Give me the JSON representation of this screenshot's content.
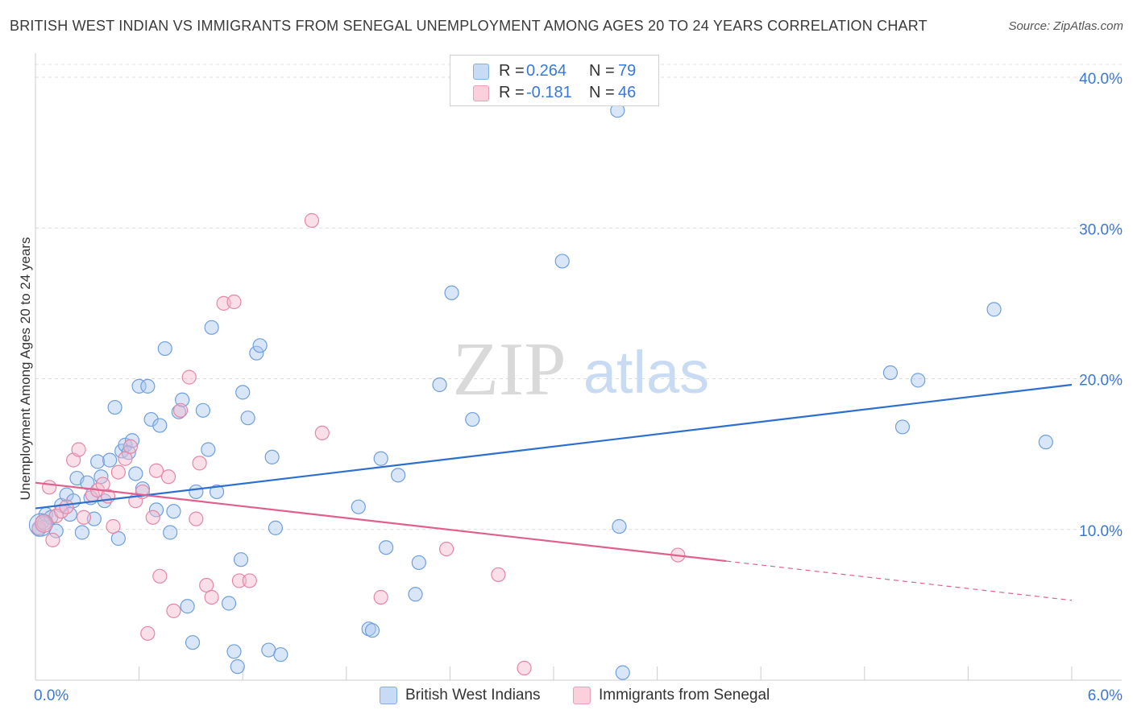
{
  "title": "BRITISH WEST INDIAN VS IMMIGRANTS FROM SENEGAL UNEMPLOYMENT AMONG AGES 20 TO 24 YEARS CORRELATION CHART",
  "source": "Source: ZipAtlas.com",
  "watermark": {
    "zip": "ZIP",
    "atlas": "atlas"
  },
  "legend": {
    "r_label": "R =",
    "n_label": "N =",
    "rows": [
      {
        "r": "0.264",
        "n": "79",
        "color": "#a9c8f0"
      },
      {
        "r": "-0.181",
        "n": "46",
        "color": "#f5b8cb"
      }
    ]
  },
  "bottom_legend": [
    {
      "label": "British West Indians",
      "color": "#a9c8f0"
    },
    {
      "label": "Immigrants from Senegal",
      "color": "#f5b8cb"
    }
  ],
  "chart_data": {
    "type": "scatter",
    "title": "BRITISH WEST INDIAN VS IMMIGRANTS FROM SENEGAL UNEMPLOYMENT AMONG AGES 20 TO 24 YEARS CORRELATION CHART",
    "xlabel": "",
    "ylabel": "Unemployment Among Ages 20 to 24 years",
    "xlim": [
      0,
      6
    ],
    "ylim": [
      0,
      40
    ],
    "x_tick_labels": [
      "0.0%",
      "6.0%"
    ],
    "y_ticks": [
      10,
      20,
      30,
      40
    ],
    "y_tick_labels": [
      "10.0%",
      "20.0%",
      "30.0%",
      "40.0%"
    ],
    "grid": "horizontal dashed",
    "legend_position": "top-center",
    "series": [
      {
        "name": "British West Indians",
        "color": "#a9c8f0",
        "stroke": "#6f9fdc",
        "trend": {
          "x0": 0.0,
          "y0": 11.4,
          "x1": 6.0,
          "y1": 19.6,
          "color": "#2c6fcf"
        },
        "points": [
          [
            0.02,
            10.0
          ],
          [
            0.04,
            10.5
          ],
          [
            0.06,
            11.0
          ],
          [
            0.09,
            10.8
          ],
          [
            0.12,
            9.9
          ],
          [
            0.15,
            11.6
          ],
          [
            0.18,
            12.3
          ],
          [
            0.2,
            11.0
          ],
          [
            0.22,
            11.9
          ],
          [
            0.24,
            13.4
          ],
          [
            0.27,
            9.8
          ],
          [
            0.3,
            13.1
          ],
          [
            0.32,
            12.1
          ],
          [
            0.34,
            10.7
          ],
          [
            0.36,
            14.5
          ],
          [
            0.38,
            13.5
          ],
          [
            0.4,
            11.9
          ],
          [
            0.43,
            14.6
          ],
          [
            0.46,
            18.1
          ],
          [
            0.48,
            9.4
          ],
          [
            0.5,
            15.2
          ],
          [
            0.52,
            15.6
          ],
          [
            0.54,
            15.1
          ],
          [
            0.56,
            15.9
          ],
          [
            0.58,
            13.7
          ],
          [
            0.6,
            19.5
          ],
          [
            0.62,
            12.7
          ],
          [
            0.65,
            19.5
          ],
          [
            0.67,
            17.3
          ],
          [
            0.7,
            11.3
          ],
          [
            0.72,
            16.9
          ],
          [
            0.75,
            22.0
          ],
          [
            0.78,
            9.8
          ],
          [
            0.8,
            11.2
          ],
          [
            0.83,
            17.8
          ],
          [
            0.85,
            18.6
          ],
          [
            0.88,
            4.9
          ],
          [
            0.91,
            2.5
          ],
          [
            0.93,
            12.5
          ],
          [
            0.97,
            17.9
          ],
          [
            1.0,
            15.3
          ],
          [
            1.02,
            23.4
          ],
          [
            1.05,
            12.5
          ],
          [
            1.12,
            5.1
          ],
          [
            1.15,
            1.9
          ],
          [
            1.17,
            0.9
          ],
          [
            1.19,
            8.0
          ],
          [
            1.2,
            19.1
          ],
          [
            1.23,
            17.4
          ],
          [
            1.28,
            21.7
          ],
          [
            1.3,
            22.2
          ],
          [
            1.35,
            2.0
          ],
          [
            1.37,
            14.8
          ],
          [
            1.39,
            10.1
          ],
          [
            1.42,
            1.7
          ],
          [
            1.87,
            11.5
          ],
          [
            1.93,
            3.4
          ],
          [
            1.95,
            3.3
          ],
          [
            2.0,
            14.7
          ],
          [
            2.03,
            8.8
          ],
          [
            2.1,
            13.6
          ],
          [
            2.2,
            5.7
          ],
          [
            2.22,
            7.8
          ],
          [
            2.34,
            19.6
          ],
          [
            2.41,
            25.7
          ],
          [
            2.53,
            17.3
          ],
          [
            3.05,
            27.8
          ],
          [
            3.37,
            37.8
          ],
          [
            3.38,
            10.2
          ],
          [
            3.4,
            0.5
          ],
          [
            4.95,
            20.4
          ],
          [
            5.02,
            16.8
          ],
          [
            5.11,
            19.9
          ],
          [
            5.55,
            24.6
          ],
          [
            5.85,
            15.8
          ]
        ]
      },
      {
        "name": "Immigrants from Senegal",
        "color": "#f5b8cb",
        "stroke": "#e487a6",
        "trend": {
          "x0": 0.0,
          "y0": 13.1,
          "x1": 4.0,
          "y1": 7.9,
          "color": "#e0608d"
        },
        "trend_extension": {
          "x0": 4.0,
          "y0": 7.9,
          "x1": 6.0,
          "y1": 5.3
        },
        "points": [
          [
            0.02,
            10.1
          ],
          [
            0.05,
            10.4
          ],
          [
            0.08,
            12.8
          ],
          [
            0.1,
            9.3
          ],
          [
            0.12,
            10.9
          ],
          [
            0.15,
            11.2
          ],
          [
            0.18,
            11.5
          ],
          [
            0.22,
            14.6
          ],
          [
            0.25,
            15.3
          ],
          [
            0.28,
            10.8
          ],
          [
            0.33,
            12.3
          ],
          [
            0.36,
            12.6
          ],
          [
            0.39,
            13.0
          ],
          [
            0.42,
            12.2
          ],
          [
            0.45,
            10.2
          ],
          [
            0.48,
            13.8
          ],
          [
            0.52,
            14.7
          ],
          [
            0.55,
            15.5
          ],
          [
            0.58,
            11.9
          ],
          [
            0.62,
            12.5
          ],
          [
            0.65,
            3.1
          ],
          [
            0.68,
            10.8
          ],
          [
            0.7,
            13.9
          ],
          [
            0.72,
            6.9
          ],
          [
            0.77,
            13.5
          ],
          [
            0.8,
            4.6
          ],
          [
            0.84,
            17.9
          ],
          [
            0.89,
            20.1
          ],
          [
            0.93,
            10.7
          ],
          [
            0.95,
            14.4
          ],
          [
            0.99,
            6.3
          ],
          [
            1.02,
            5.5
          ],
          [
            1.09,
            25.0
          ],
          [
            1.15,
            25.1
          ],
          [
            1.18,
            6.6
          ],
          [
            1.24,
            6.6
          ],
          [
            1.6,
            30.5
          ],
          [
            1.66,
            16.4
          ],
          [
            2.0,
            5.5
          ],
          [
            2.38,
            8.7
          ],
          [
            2.68,
            7.0
          ],
          [
            2.83,
            0.8
          ],
          [
            3.72,
            8.3
          ]
        ]
      }
    ]
  }
}
